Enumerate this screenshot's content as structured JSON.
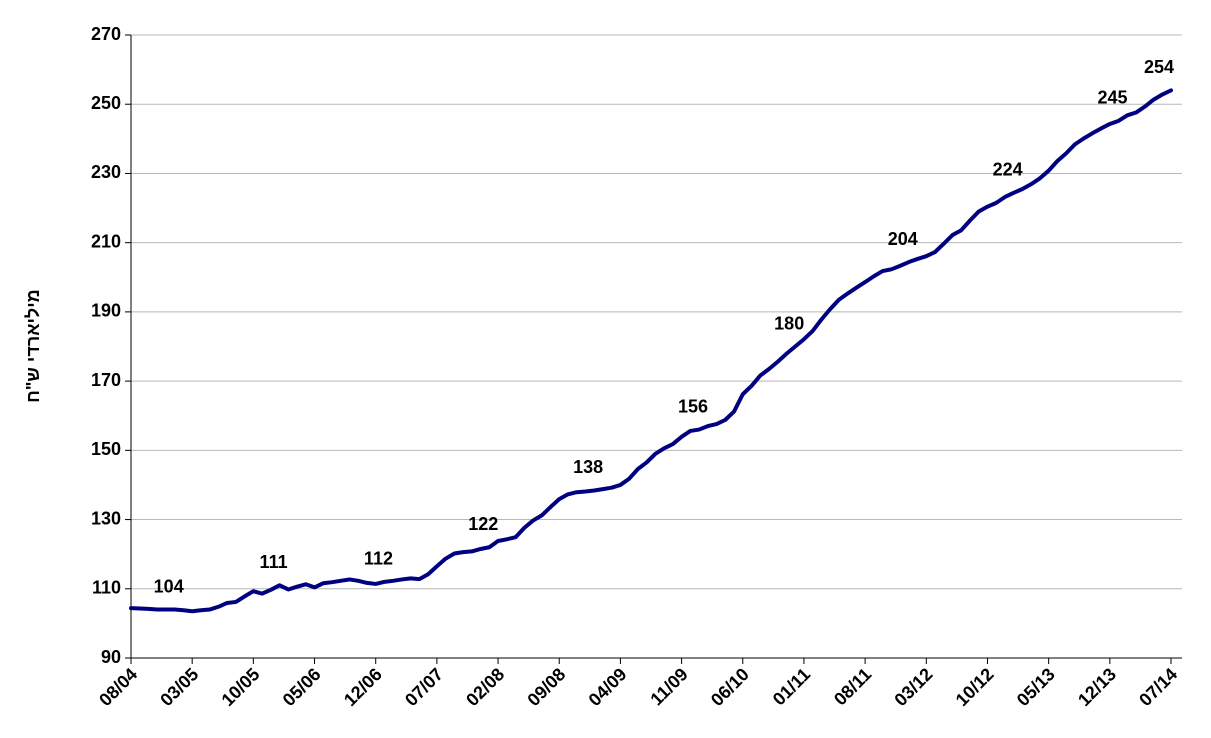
{
  "chart_data": {
    "type": "line",
    "y_label": "מיליארדי ש\"ח",
    "categories": [
      "08/04",
      null,
      null,
      null,
      null,
      null,
      null,
      "03/05",
      null,
      null,
      null,
      null,
      null,
      null,
      "10/05",
      null,
      null,
      null,
      null,
      null,
      null,
      "05/06",
      null,
      null,
      null,
      null,
      null,
      null,
      "12/06",
      null,
      null,
      null,
      null,
      null,
      null,
      "07/07",
      null,
      null,
      null,
      null,
      null,
      null,
      "02/08",
      null,
      null,
      null,
      null,
      null,
      null,
      "09/08",
      null,
      null,
      null,
      null,
      null,
      null,
      "04/09",
      null,
      null,
      null,
      null,
      null,
      null,
      "11/09",
      null,
      null,
      null,
      null,
      null,
      null,
      "06/10",
      null,
      null,
      null,
      null,
      null,
      null,
      "01/11",
      null,
      null,
      null,
      null,
      null,
      null,
      "08/11",
      null,
      null,
      null,
      null,
      null,
      null,
      "03/12",
      null,
      null,
      null,
      null,
      null,
      null,
      "10/12",
      null,
      null,
      null,
      null,
      null,
      null,
      "05/13",
      null,
      null,
      null,
      null,
      null,
      null,
      "12/13",
      null,
      null,
      null,
      null,
      null,
      null,
      "07/14"
    ],
    "values": [
      104.4,
      104.3,
      104.2,
      104.0,
      104.0,
      104,
      103.8,
      103.5,
      103.8,
      104.0,
      104.8,
      105.9,
      106.2,
      107.8,
      109.3,
      108.6,
      109.7,
      111,
      109.8,
      110.6,
      111.3,
      110.4,
      111.6,
      111.9,
      112.3,
      112.7,
      112.3,
      111.7,
      111.4,
      112,
      112.3,
      112.7,
      113.0,
      112.8,
      114.2,
      116.5,
      118.7,
      120.2,
      120.6,
      120.8,
      121.5,
      122,
      123.8,
      124.3,
      124.9,
      127.6,
      129.7,
      131.2,
      133.6,
      135.9,
      137.3,
      137.9,
      138.1,
      138.4,
      138.8,
      139.2,
      140.0,
      141.8,
      144.6,
      146.5,
      149.0,
      150.6,
      151.8,
      153.9,
      155.6,
      156,
      157.0,
      157.6,
      158.8,
      161.2,
      166.2,
      168.6,
      171.6,
      173.5,
      175.6,
      177.9,
      180,
      182.1,
      184.5,
      187.8,
      190.8,
      193.5,
      195.3,
      197.0,
      198.6,
      200.3,
      201.8,
      202.3,
      203.3,
      204.4,
      205.3,
      206.1,
      207.3,
      209.7,
      212.2,
      213.6,
      216.4,
      219.0,
      220.4,
      221.5,
      223.2,
      224.4,
      225.5,
      226.9,
      228.6,
      230.8,
      233.6,
      235.8,
      238.4,
      240.1,
      241.6,
      243.0,
      244.3,
      245.2,
      246.8,
      247.6,
      249.3,
      251.3,
      252.8,
      254
    ],
    "value_labels": [
      null,
      null,
      null,
      null,
      null,
      "104",
      null,
      null,
      null,
      null,
      null,
      null,
      null,
      null,
      null,
      null,
      null,
      "111",
      null,
      null,
      null,
      null,
      null,
      null,
      null,
      null,
      null,
      null,
      null,
      "112",
      null,
      null,
      null,
      null,
      null,
      null,
      null,
      null,
      null,
      null,
      null,
      "122",
      null,
      null,
      null,
      null,
      null,
      null,
      null,
      null,
      null,
      null,
      null,
      "138",
      null,
      null,
      null,
      null,
      null,
      null,
      null,
      null,
      null,
      null,
      null,
      "156",
      null,
      null,
      null,
      null,
      null,
      null,
      null,
      null,
      null,
      null,
      "180",
      null,
      null,
      null,
      null,
      null,
      null,
      null,
      null,
      null,
      null,
      null,
      null,
      "204",
      null,
      null,
      null,
      null,
      null,
      null,
      null,
      null,
      null,
      null,
      null,
      "224",
      null,
      null,
      null,
      null,
      null,
      null,
      null,
      null,
      null,
      null,
      null,
      "245",
      null,
      null,
      null,
      null,
      null,
      "254"
    ],
    "color": "#000080",
    "ylim": [
      90,
      270
    ],
    "yticks": [
      90,
      110,
      130,
      150,
      170,
      190,
      210,
      230,
      250,
      270
    ],
    "grid": true
  }
}
